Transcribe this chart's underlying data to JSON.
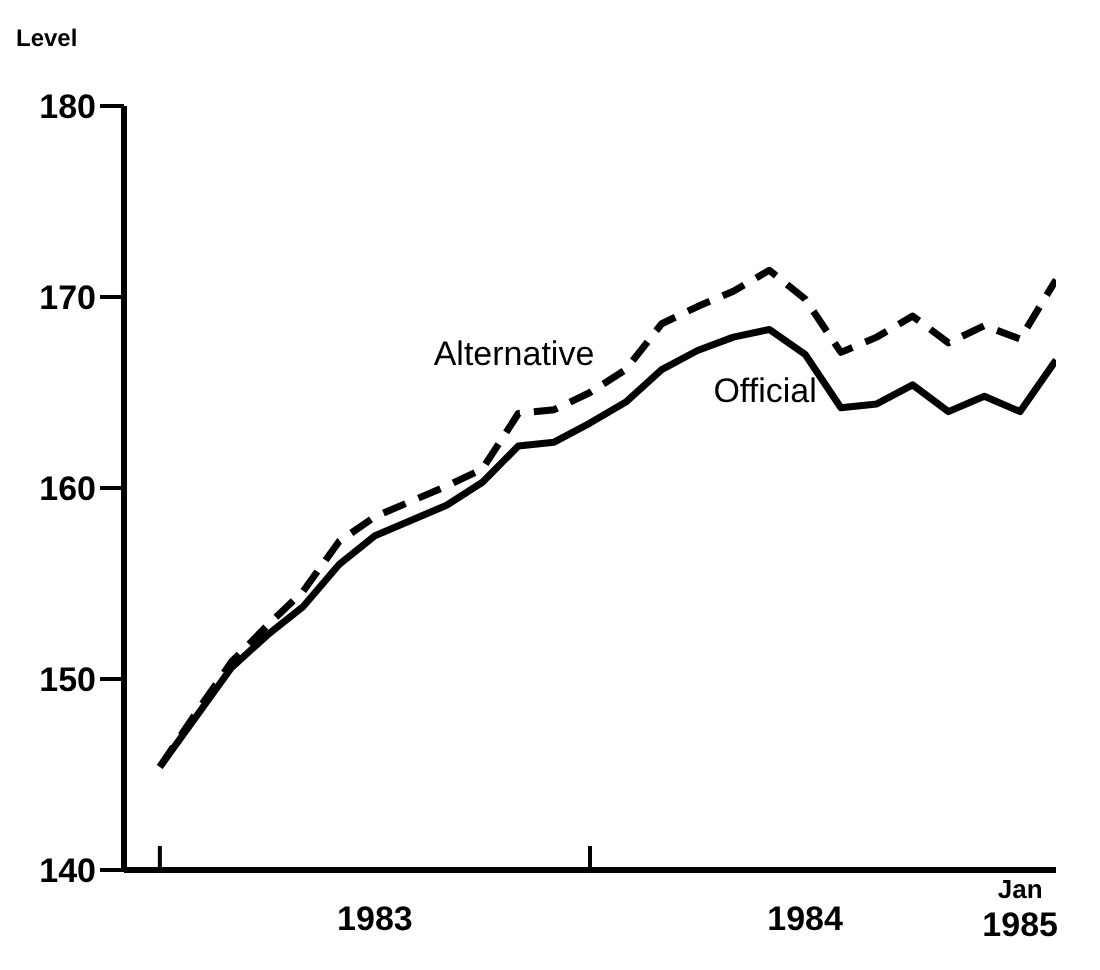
{
  "chart_data": {
    "type": "line",
    "ylabel": "Level",
    "x": [
      "1983-01",
      "1983-02",
      "1983-03",
      "1983-04",
      "1983-05",
      "1983-06",
      "1983-07",
      "1983-08",
      "1983-09",
      "1983-10",
      "1983-11",
      "1983-12",
      "1984-01",
      "1984-02",
      "1984-03",
      "1984-04",
      "1984-05",
      "1984-06",
      "1984-07",
      "1984-08",
      "1984-09",
      "1984-10",
      "1984-11",
      "1984-12",
      "1985-01",
      "1985-02"
    ],
    "series": [
      {
        "name": "Alternative",
        "color": "#000000",
        "line_style": "dashed",
        "values": [
          145.4,
          148.2,
          150.9,
          152.8,
          154.6,
          157.2,
          158.5,
          159.3,
          160.1,
          161,
          163.9,
          164.1,
          165,
          166.2,
          168.6,
          169.5,
          170.3,
          171.4,
          169.9,
          167.1,
          167.9,
          169,
          167.6,
          168.5,
          167.8,
          170.9
        ]
      },
      {
        "name": "Official",
        "color": "#000000",
        "line_style": "solid",
        "values": [
          145.4,
          148,
          150.6,
          152.3,
          153.8,
          156,
          157.5,
          158.3,
          159.1,
          160.3,
          162.2,
          162.4,
          163.4,
          164.5,
          166.2,
          167.2,
          167.9,
          168.3,
          167,
          164.2,
          164.4,
          165.4,
          164,
          164.8,
          164,
          166.7
        ]
      }
    ],
    "xlim": [
      "1982-12",
      "1985-02"
    ],
    "xticks": [
      {
        "value": "1983-01",
        "label": null
      },
      {
        "value": "1983-07",
        "label": "1983"
      },
      {
        "value": "1984-01",
        "label": null
      },
      {
        "value": "1984-07",
        "label": "1984"
      },
      {
        "value": "1985-01",
        "label": "Jan 1985"
      }
    ],
    "ylim": [
      140,
      180
    ],
    "yticks": [
      140,
      150,
      160,
      170,
      180
    ],
    "grid": false,
    "legend": false,
    "marker": "none"
  }
}
